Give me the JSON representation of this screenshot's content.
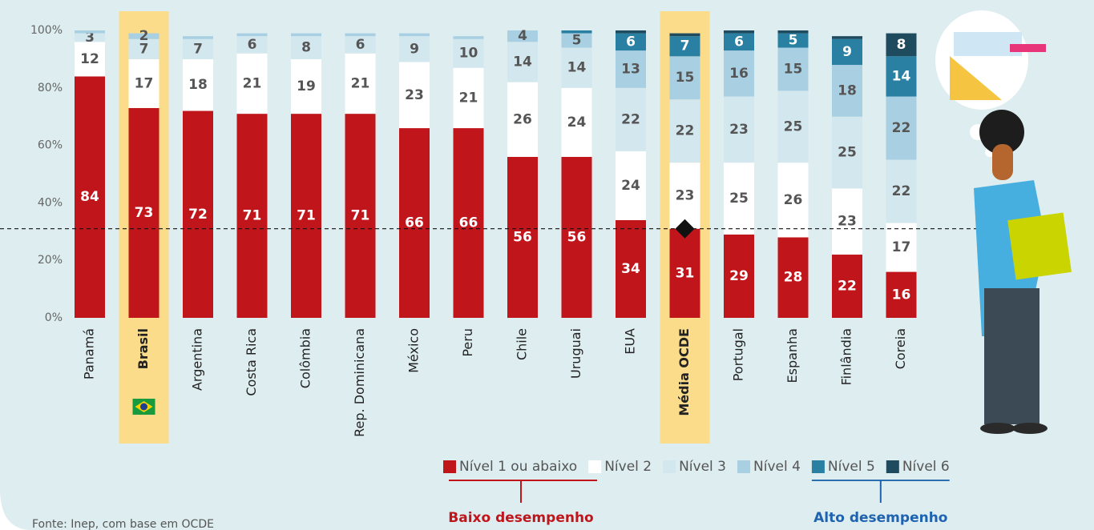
{
  "chart_data": {
    "type": "stacked_bar",
    "categories": [
      "Panamá",
      "Brasil",
      "Argentina",
      "Costa Rica",
      "Colômbia",
      "Rep. Dominicana",
      "México",
      "Peru",
      "Chile",
      "Uruguai",
      "EUA",
      "Média OCDE",
      "Portugal",
      "Espanha",
      "Finlândia",
      "Coreia"
    ],
    "series": [
      {
        "name": "Nível 1 ou abaixo",
        "color": "#c0161b",
        "values": [
          84,
          73,
          72,
          71,
          71,
          71,
          66,
          66,
          56,
          56,
          34,
          31,
          29,
          28,
          22,
          16
        ]
      },
      {
        "name": "Nível 2",
        "color": "#ffffff",
        "values": [
          12,
          17,
          18,
          21,
          19,
          21,
          23,
          21,
          26,
          24,
          24,
          23,
          25,
          26,
          23,
          17
        ]
      },
      {
        "name": "Nível 3",
        "color": "#d3e7ef",
        "values": [
          3,
          7,
          7,
          6,
          8,
          6,
          9,
          10,
          14,
          14,
          22,
          22,
          23,
          25,
          25,
          22
        ]
      },
      {
        "name": "Nível 4",
        "color": "#a9d0e2",
        "values": [
          1,
          2,
          1,
          1,
          1,
          1,
          1,
          1,
          4,
          5,
          13,
          15,
          16,
          15,
          18,
          22
        ]
      },
      {
        "name": "Nível 5",
        "color": "#2a80a2",
        "values": [
          0,
          0,
          0,
          0,
          0,
          0,
          0,
          0,
          0,
          1,
          6,
          7,
          6,
          5,
          9,
          14
        ]
      },
      {
        "name": "Nível 6",
        "color": "#1f4b5f",
        "values": [
          0,
          0,
          0,
          0,
          0,
          0,
          0,
          0,
          0,
          0,
          1,
          1,
          1,
          1,
          1,
          8
        ]
      }
    ],
    "ylim": [
      0,
      100
    ],
    "yticks": [
      {
        "value": 0,
        "label": "0%"
      },
      {
        "value": 20,
        "label": "20%"
      },
      {
        "value": 40,
        "label": "40%"
      },
      {
        "value": 60,
        "label": "60%"
      },
      {
        "value": 80,
        "label": "80%"
      },
      {
        "value": 100,
        "label": "100%"
      }
    ],
    "highlight": [
      1,
      11
    ],
    "reference_line": 31,
    "annotations": {
      "low": "Baixo desempenho",
      "high": "Alto desempenho",
      "source": "Fonte: Inep, com base em OCDE"
    }
  }
}
